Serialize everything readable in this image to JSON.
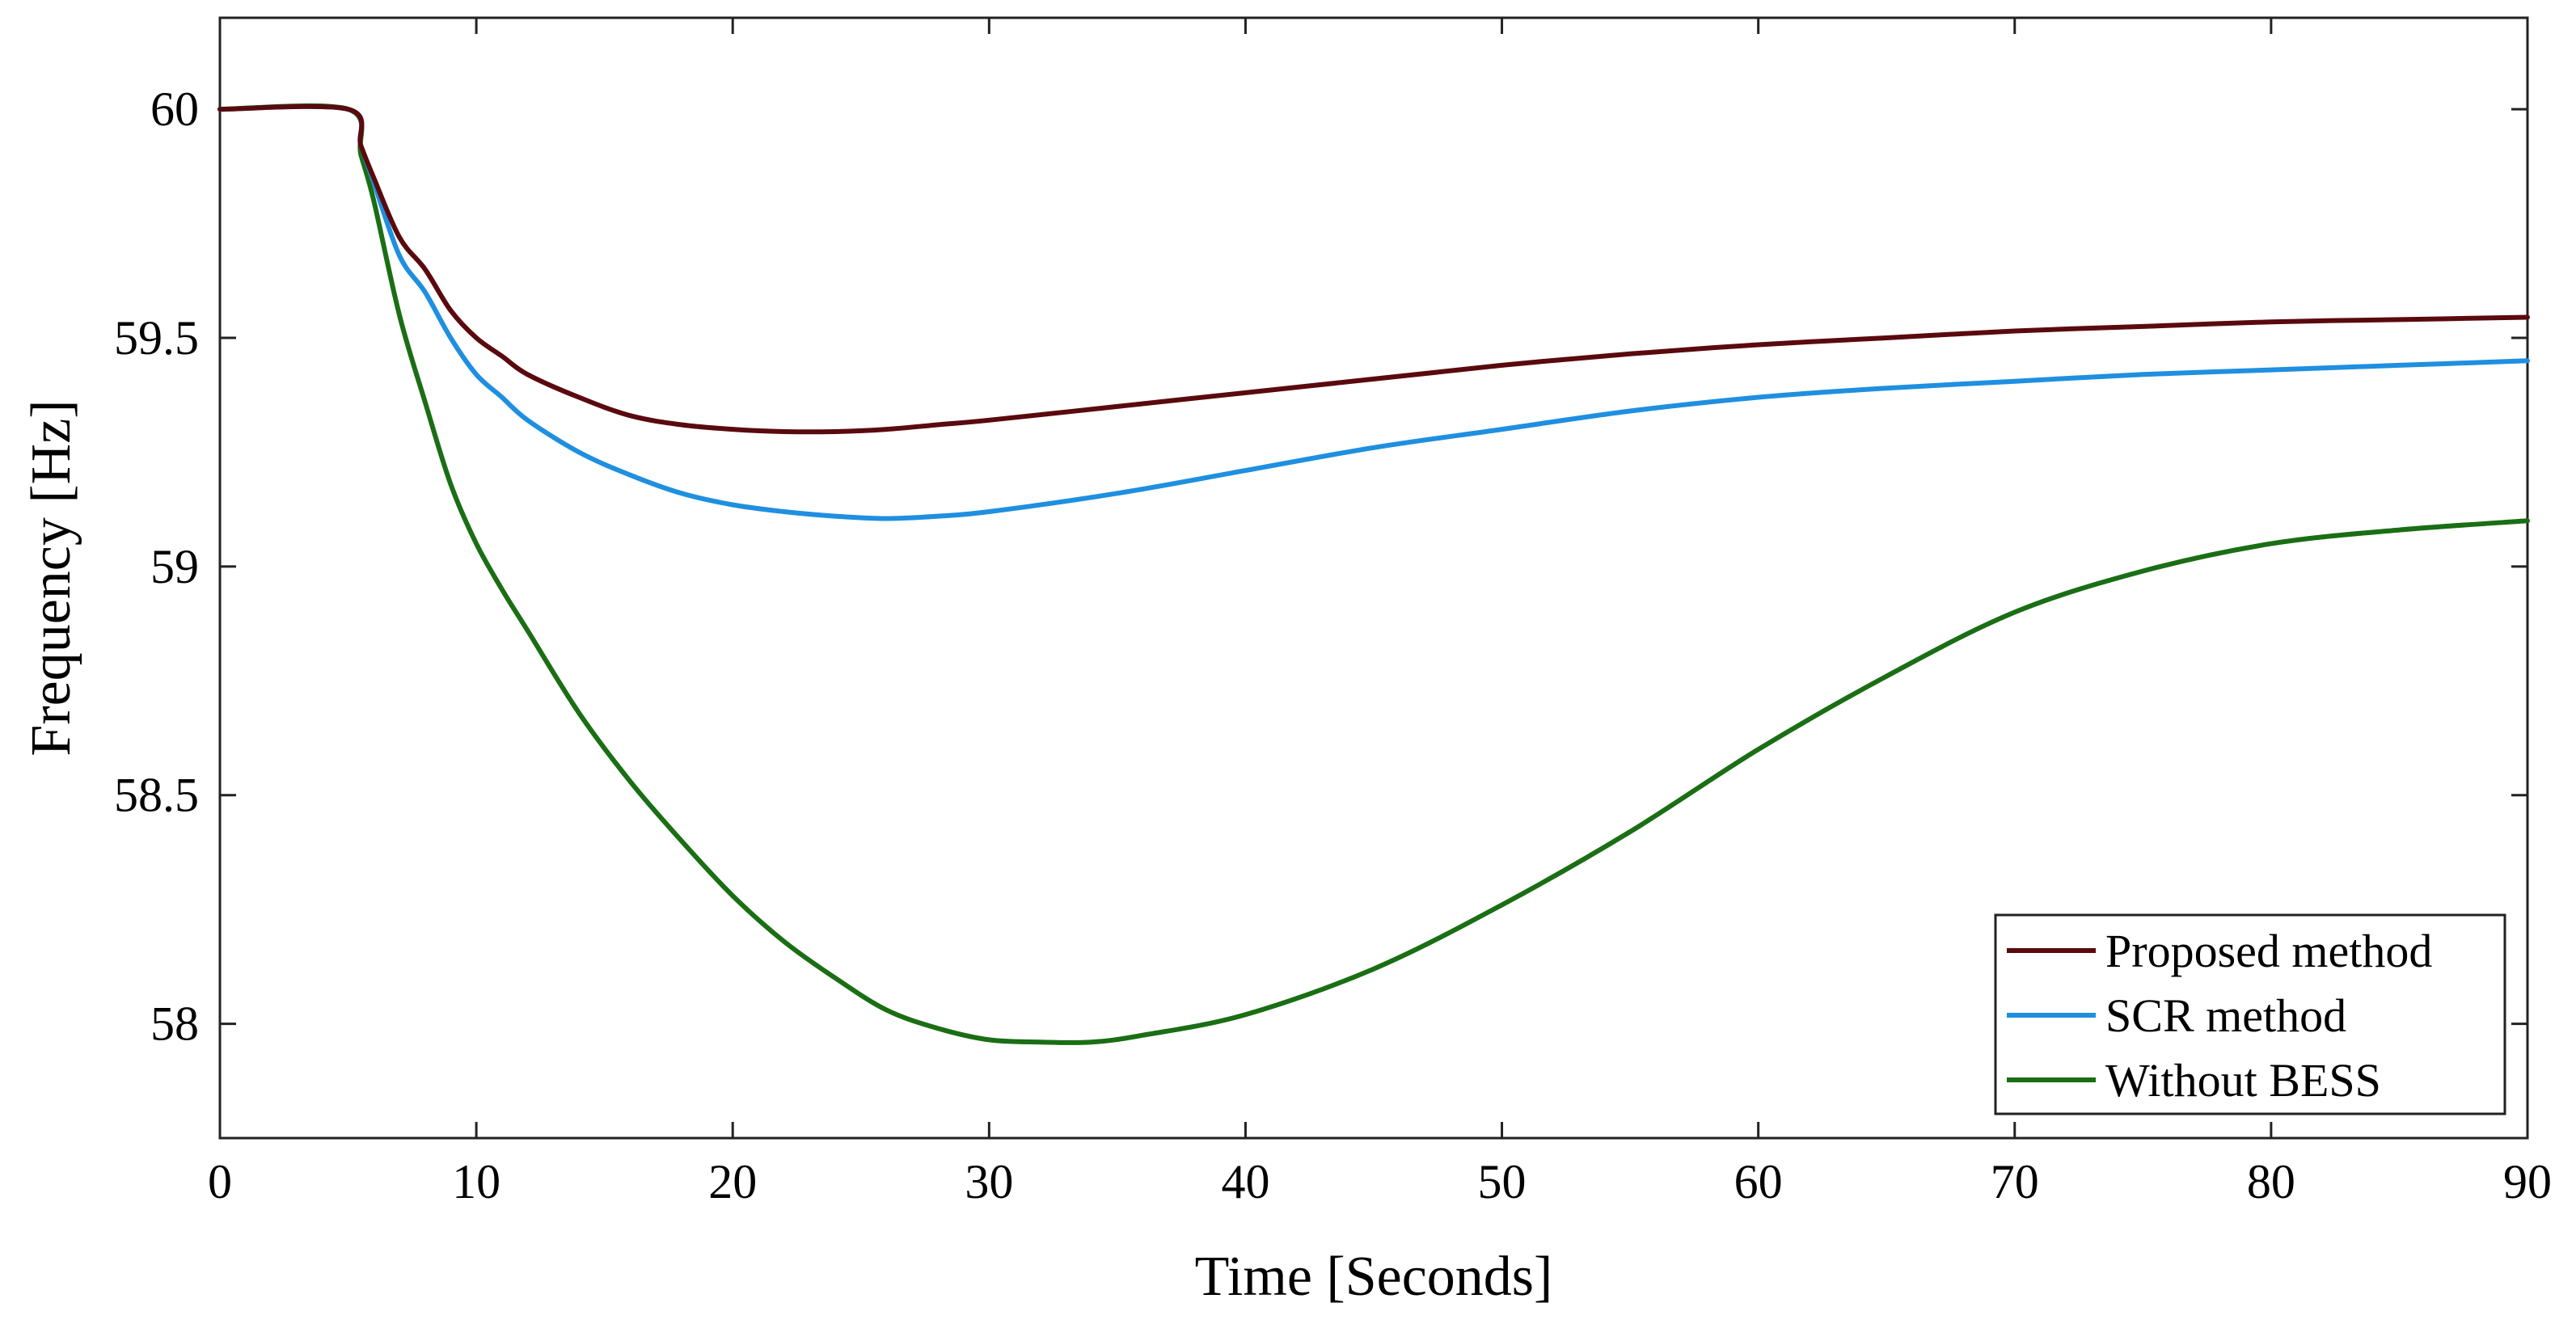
{
  "chart_data": {
    "type": "line",
    "title": "",
    "xlabel": "Time [Seconds]",
    "ylabel": "Frequency [Hz]",
    "xlim": [
      0,
      90
    ],
    "ylim": [
      57.75,
      60.2
    ],
    "xticks": [
      0,
      10,
      20,
      30,
      40,
      50,
      60,
      70,
      80,
      90
    ],
    "xtick_labels": [
      "0",
      "10",
      "20",
      "30",
      "40",
      "50",
      "60",
      "70",
      "80",
      "90"
    ],
    "yticks": [
      58,
      58.5,
      59,
      59.5,
      60
    ],
    "ytick_labels": [
      "58",
      "58.5",
      "59",
      "59.5",
      "60"
    ],
    "grid": false,
    "legend_position": "bottom-right",
    "series": [
      {
        "name": "Proposed method",
        "color": "#5a0a0e",
        "x": [
          0,
          5,
          5.5,
          6,
          7,
          8,
          9,
          10,
          11,
          12,
          14,
          16,
          18,
          20,
          22,
          24,
          26,
          28,
          30,
          35,
          40,
          45,
          50,
          55,
          60,
          65,
          70,
          75,
          80,
          85,
          90
        ],
        "y": [
          60,
          60,
          59.92,
          59.85,
          59.72,
          59.65,
          59.56,
          59.5,
          59.46,
          59.42,
          59.37,
          59.33,
          59.31,
          59.3,
          59.295,
          59.295,
          59.3,
          59.31,
          59.32,
          59.35,
          59.38,
          59.41,
          59.44,
          59.465,
          59.485,
          59.5,
          59.515,
          59.525,
          59.535,
          59.54,
          59.545
        ]
      },
      {
        "name": "SCR method",
        "color": "#1f8fe0",
        "x": [
          0,
          5,
          5.5,
          6,
          7,
          8,
          9,
          10,
          11,
          12,
          14,
          16,
          18,
          20,
          22,
          24,
          26,
          28,
          30,
          35,
          40,
          45,
          50,
          55,
          60,
          65,
          70,
          75,
          80,
          85,
          90
        ],
        "y": [
          60,
          60,
          59.92,
          59.84,
          59.68,
          59.6,
          59.5,
          59.42,
          59.37,
          59.32,
          59.25,
          59.2,
          59.16,
          59.135,
          59.12,
          59.11,
          59.105,
          59.11,
          59.12,
          59.16,
          59.21,
          59.26,
          59.3,
          59.34,
          59.37,
          59.39,
          59.405,
          59.42,
          59.43,
          59.44,
          59.45
        ]
      },
      {
        "name": "Without BESS",
        "color": "#1a6e14",
        "x": [
          0,
          5,
          5.5,
          6,
          7,
          8,
          9,
          10,
          11,
          12,
          14,
          16,
          18,
          20,
          22,
          24,
          26,
          28,
          30,
          32,
          34,
          36,
          40,
          45,
          50,
          55,
          60,
          65,
          70,
          75,
          80,
          85,
          90
        ],
        "y": [
          60,
          60,
          59.9,
          59.8,
          59.55,
          59.36,
          59.18,
          59.05,
          58.95,
          58.86,
          58.68,
          58.53,
          58.4,
          58.28,
          58.18,
          58.1,
          58.03,
          57.99,
          57.965,
          57.96,
          57.96,
          57.975,
          58.02,
          58.12,
          58.26,
          58.42,
          58.6,
          58.76,
          58.9,
          58.99,
          59.05,
          59.08,
          59.1
        ]
      }
    ]
  }
}
